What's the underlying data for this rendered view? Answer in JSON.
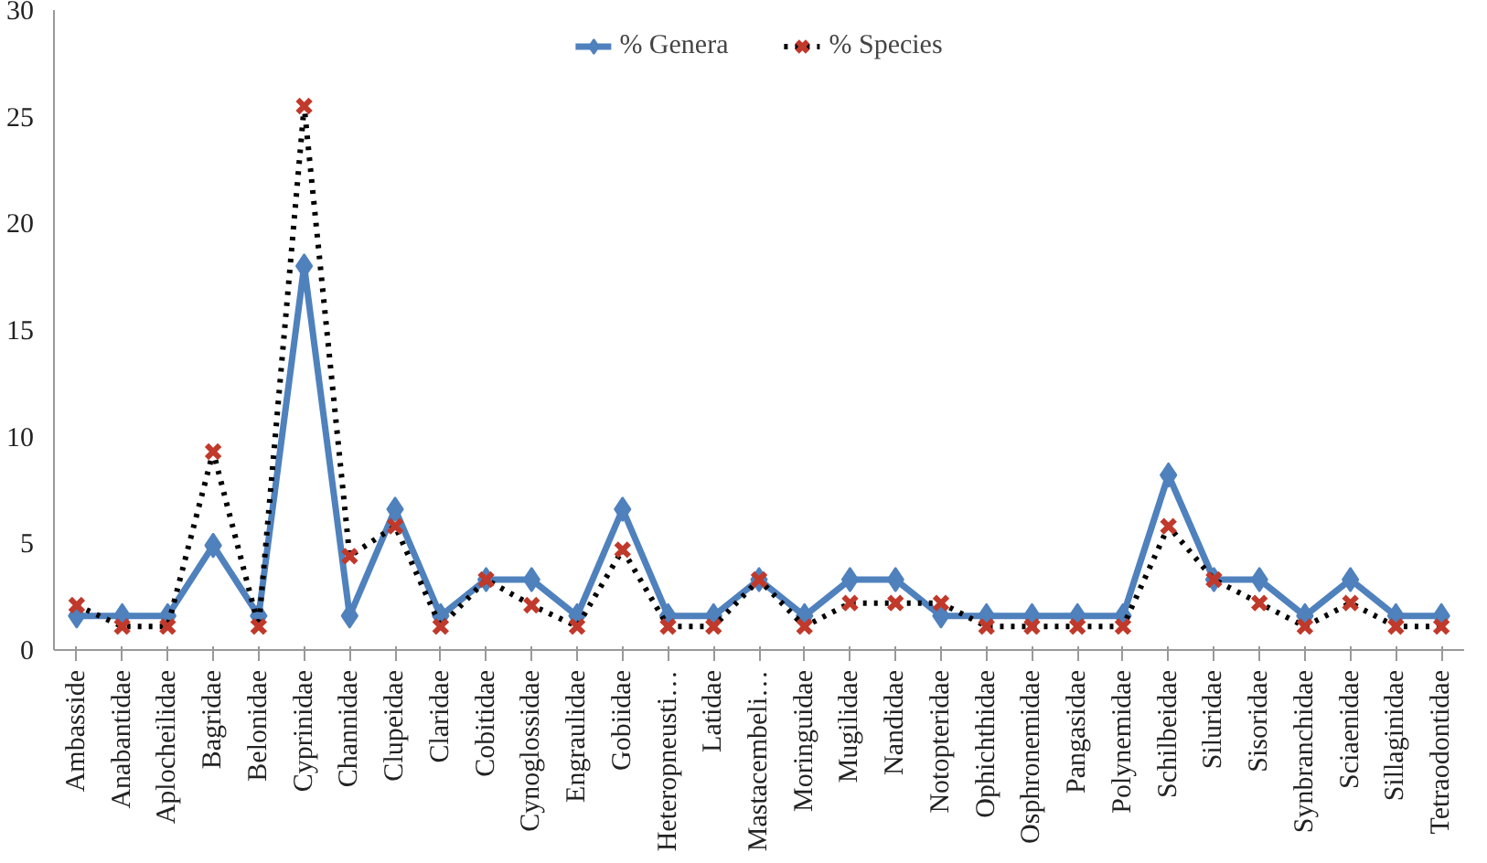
{
  "chart_data": {
    "type": "line",
    "categories": [
      "Ambasside",
      "Anabantidae",
      "Aplocheilidae",
      "Bagridae",
      "Belonidae",
      "Cyprinidae",
      "Channidae",
      "Clupeidae",
      "Claridae",
      "Cobitidae",
      "Cynoglossidae",
      "Engraulidae",
      "Gobiidae",
      "Heteropneusti…",
      "Latidae",
      "Mastacembeli…",
      "Moringuidae",
      "Mugilidae",
      "Nandidae",
      "Notopteridae",
      "Ophichthidae",
      "Osphronemidae",
      "Pangasidae",
      "Polynemidae",
      "Schilbeidae",
      "Siluridae",
      "Sisoridae",
      "Synbranchidae",
      "Sciaenidae",
      "Sillaginidae",
      "Tetraodontidae"
    ],
    "series": [
      {
        "name": "% Genera",
        "color": "#4f81bd",
        "marker": "diamond",
        "line_style": "solid",
        "values": [
          1.6,
          1.6,
          1.6,
          4.9,
          1.6,
          18,
          1.6,
          6.6,
          1.6,
          3.3,
          3.3,
          1.6,
          6.6,
          1.6,
          1.6,
          3.3,
          1.6,
          3.3,
          3.3,
          1.6,
          1.6,
          1.6,
          1.6,
          1.6,
          8.2,
          3.3,
          3.3,
          1.6,
          3.3,
          1.6,
          1.6
        ]
      },
      {
        "name": "% Species",
        "color": "#000000",
        "marker": "cross",
        "line_style": "dotted",
        "values": [
          2.1,
          1.1,
          1.1,
          9.3,
          1.1,
          25.5,
          4.4,
          5.8,
          1.1,
          3.3,
          2.1,
          1.1,
          4.7,
          1.1,
          1.1,
          3.3,
          1.1,
          2.2,
          2.2,
          2.2,
          1.1,
          1.1,
          1.1,
          1.1,
          5.8,
          3.3,
          2.2,
          1.1,
          2.2,
          1.1,
          1.1
        ]
      }
    ],
    "ylim": [
      0,
      30
    ],
    "yticks": [
      0,
      5,
      10,
      15,
      20,
      25,
      30
    ],
    "grid": false,
    "legend": "top"
  }
}
